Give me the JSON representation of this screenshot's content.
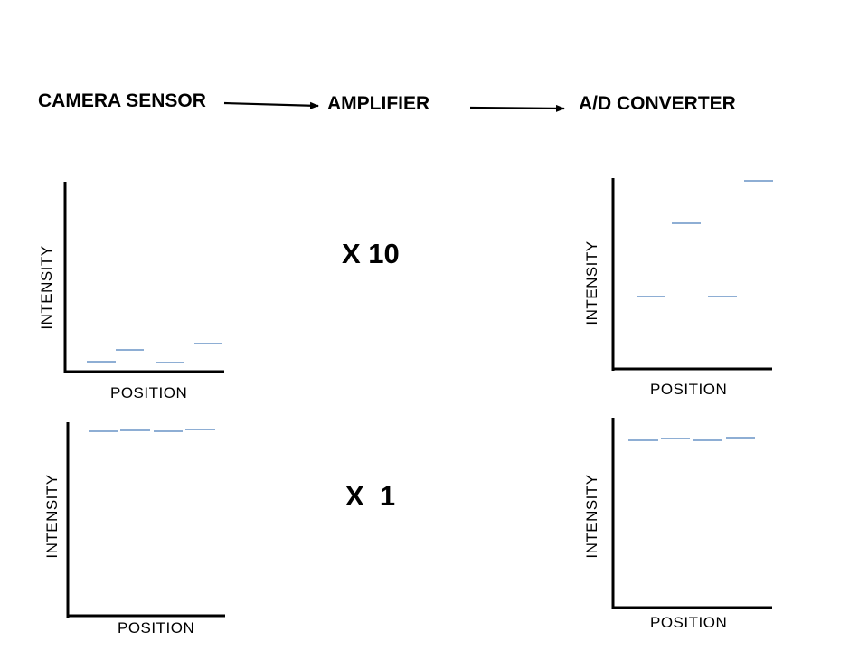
{
  "pipeline": {
    "stage_1": "CAMERA SENSOR",
    "stage_2": "AMPLIFIER",
    "stage_3": "A/D CONVERTER"
  },
  "gains": {
    "high": "X 10",
    "low": "X  1"
  },
  "axes": {
    "y_label": "INTENSITY",
    "x_label": "POSITION"
  },
  "colors": {
    "signal": "#4a7ebb",
    "axis": "#000000"
  }
}
